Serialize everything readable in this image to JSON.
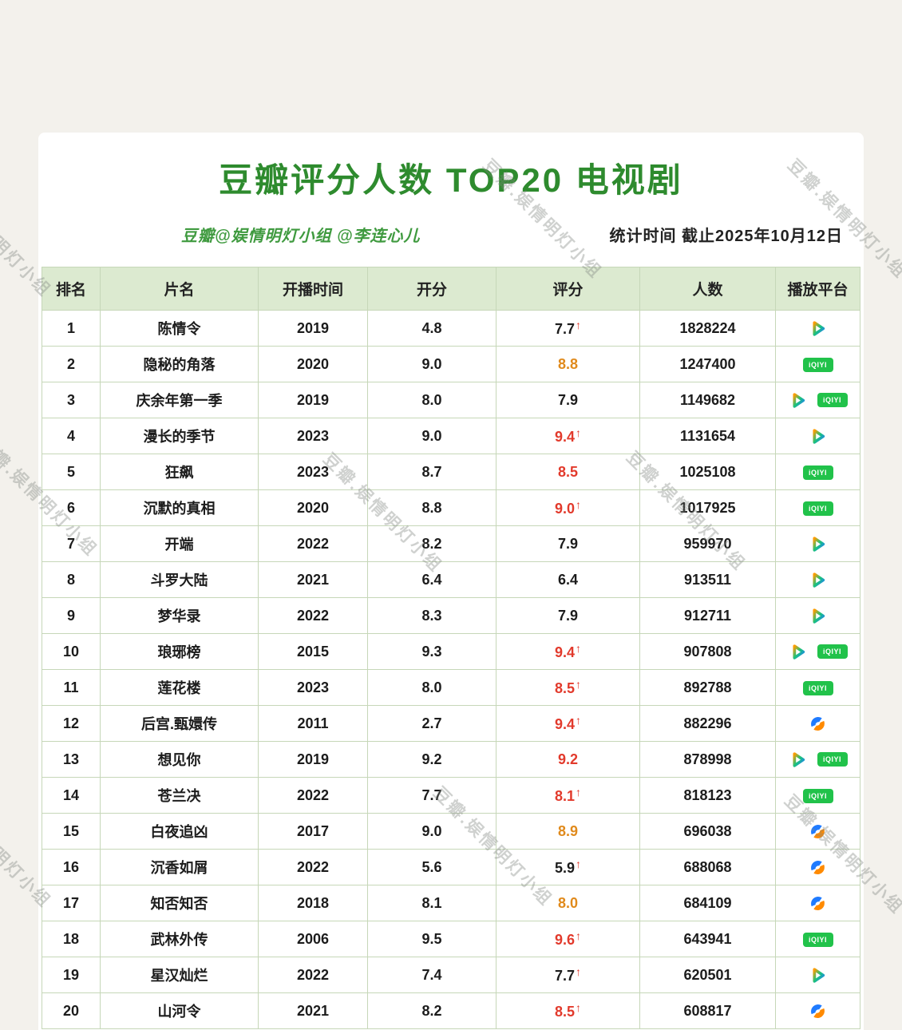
{
  "page": {
    "title": "豆瓣评分人数 TOP20 电视剧",
    "credit": "豆瓣@娱情明灯小组 @李连心儿",
    "stats_time": "统计时间  截止2025年10月12日",
    "watermark": "豆瓣.娱情明灯小组"
  },
  "colors": {
    "title_green": "#2e8b2e",
    "credit_green": "#3f9a3f",
    "header_bg": "#dcead0",
    "border": "#c6d7b8",
    "score_red": "#e23a2c",
    "score_orange": "#e08a1c",
    "text_dark": "#1c1c1c",
    "iqiyi_green": "#21c24a",
    "page_bg": "#f3f1ec"
  },
  "platform_labels": {
    "iqiyi": "iQIYI"
  },
  "icons": {
    "tencent": "tencent-video-icon",
    "iqiyi": "iqiyi-icon",
    "youku": "youku-icon"
  },
  "chart_data": {
    "type": "table",
    "title": "豆瓣评分人数 TOP20 电视剧",
    "subtitle_left": "豆瓣@娱情明灯小组 @李连心儿",
    "subtitle_right": "统计时间  截止2025年10月12日",
    "arrow_glyph": "↑",
    "columns": [
      "排名",
      "片名",
      "开播时间",
      "开分",
      "评分",
      "人数",
      "播放平台"
    ],
    "rows": [
      {
        "rank": "1",
        "title": "陈情令",
        "year": "2019",
        "open_score": "4.8",
        "score": "7.7",
        "score_color": "dark",
        "arrow": true,
        "count": "1828224",
        "platforms": [
          "tencent"
        ]
      },
      {
        "rank": "2",
        "title": "隐秘的角落",
        "year": "2020",
        "open_score": "9.0",
        "score": "8.8",
        "score_color": "orange",
        "arrow": false,
        "count": "1247400",
        "platforms": [
          "iqiyi"
        ]
      },
      {
        "rank": "3",
        "title": "庆余年第一季",
        "year": "2019",
        "open_score": "8.0",
        "score": "7.9",
        "score_color": "dark",
        "arrow": false,
        "count": "1149682",
        "platforms": [
          "tencent",
          "iqiyi"
        ]
      },
      {
        "rank": "4",
        "title": "漫长的季节",
        "year": "2023",
        "open_score": "9.0",
        "score": "9.4",
        "score_color": "red",
        "arrow": true,
        "count": "1131654",
        "platforms": [
          "tencent"
        ]
      },
      {
        "rank": "5",
        "title": "狂飙",
        "year": "2023",
        "open_score": "8.7",
        "score": "8.5",
        "score_color": "red",
        "arrow": false,
        "count": "1025108",
        "platforms": [
          "iqiyi"
        ]
      },
      {
        "rank": "6",
        "title": "沉默的真相",
        "year": "2020",
        "open_score": "8.8",
        "score": "9.0",
        "score_color": "red",
        "arrow": true,
        "count": "1017925",
        "platforms": [
          "iqiyi"
        ]
      },
      {
        "rank": "7",
        "title": "开端",
        "year": "2022",
        "open_score": "8.2",
        "score": "7.9",
        "score_color": "dark",
        "arrow": false,
        "count": "959970",
        "platforms": [
          "tencent"
        ]
      },
      {
        "rank": "8",
        "title": "斗罗大陆",
        "year": "2021",
        "open_score": "6.4",
        "score": "6.4",
        "score_color": "dark",
        "arrow": false,
        "count": "913511",
        "platforms": [
          "tencent"
        ]
      },
      {
        "rank": "9",
        "title": "梦华录",
        "year": "2022",
        "open_score": "8.3",
        "score": "7.9",
        "score_color": "dark",
        "arrow": false,
        "count": "912711",
        "platforms": [
          "tencent"
        ]
      },
      {
        "rank": "10",
        "title": "琅琊榜",
        "year": "2015",
        "open_score": "9.3",
        "score": "9.4",
        "score_color": "red",
        "arrow": true,
        "count": "907808",
        "platforms": [
          "tencent",
          "iqiyi"
        ]
      },
      {
        "rank": "11",
        "title": "莲花楼",
        "year": "2023",
        "open_score": "8.0",
        "score": "8.5",
        "score_color": "red",
        "arrow": true,
        "count": "892788",
        "platforms": [
          "iqiyi"
        ]
      },
      {
        "rank": "12",
        "title": "后宫.甄嬛传",
        "year": "2011",
        "open_score": "2.7",
        "score": "9.4",
        "score_color": "red",
        "arrow": true,
        "count": "882296",
        "platforms": [
          "youku"
        ]
      },
      {
        "rank": "13",
        "title": "想见你",
        "year": "2019",
        "open_score": "9.2",
        "score": "9.2",
        "score_color": "red",
        "arrow": false,
        "count": "878998",
        "platforms": [
          "tencent",
          "iqiyi"
        ]
      },
      {
        "rank": "14",
        "title": "苍兰决",
        "year": "2022",
        "open_score": "7.7",
        "score": "8.1",
        "score_color": "red",
        "arrow": true,
        "count": "818123",
        "platforms": [
          "iqiyi"
        ]
      },
      {
        "rank": "15",
        "title": "白夜追凶",
        "year": "2017",
        "open_score": "9.0",
        "score": "8.9",
        "score_color": "orange",
        "arrow": false,
        "count": "696038",
        "platforms": [
          "youku"
        ]
      },
      {
        "rank": "16",
        "title": "沉香如屑",
        "year": "2022",
        "open_score": "5.6",
        "score": "5.9",
        "score_color": "dark",
        "arrow": true,
        "count": "688068",
        "platforms": [
          "youku"
        ]
      },
      {
        "rank": "17",
        "title": "知否知否",
        "year": "2018",
        "open_score": "8.1",
        "score": "8.0",
        "score_color": "orange",
        "arrow": false,
        "count": "684109",
        "platforms": [
          "youku"
        ]
      },
      {
        "rank": "18",
        "title": "武林外传",
        "year": "2006",
        "open_score": "9.5",
        "score": "9.6",
        "score_color": "red",
        "arrow": true,
        "count": "643941",
        "platforms": [
          "iqiyi"
        ]
      },
      {
        "rank": "19",
        "title": "星汉灿烂",
        "year": "2022",
        "open_score": "7.4",
        "score": "7.7",
        "score_color": "dark",
        "arrow": true,
        "count": "620501",
        "platforms": [
          "tencent"
        ]
      },
      {
        "rank": "20",
        "title": "山河令",
        "year": "2021",
        "open_score": "8.2",
        "score": "8.5",
        "score_color": "red",
        "arrow": true,
        "count": "608817",
        "platforms": [
          "youku"
        ]
      }
    ]
  }
}
